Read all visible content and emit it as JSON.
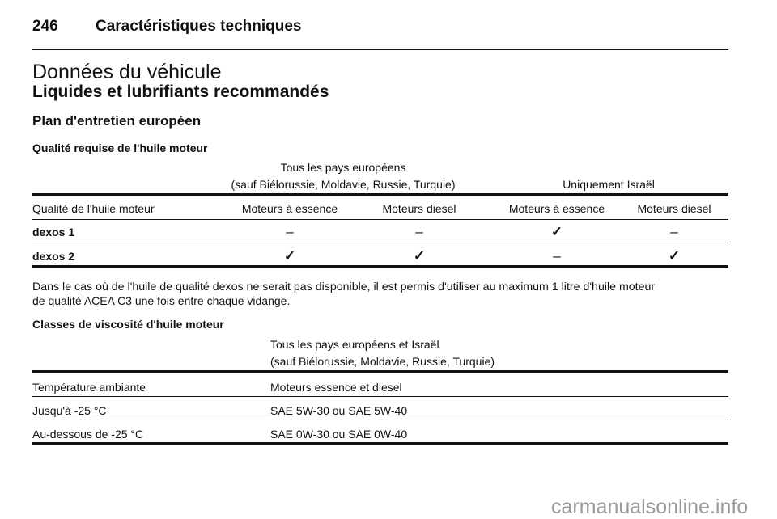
{
  "header": {
    "page_number": "246",
    "chapter": "Caractéristiques techniques"
  },
  "title": "Données du véhicule",
  "subtitle": "Liquides et lubrifiants recommandés",
  "section": "Plan d'entretien européen",
  "table1": {
    "caption": "Qualité requise de l'huile moteur",
    "group1_line1": "Tous les pays européens",
    "group1_line2": "(sauf Biélorussie, Moldavie, Russie, Turquie)",
    "group2": "Uniquement Israël",
    "columns": [
      "Qualité de l'huile moteur",
      "Moteurs à essence",
      "Moteurs diesel",
      "Moteurs à essence",
      "Moteurs diesel"
    ],
    "rows": [
      {
        "label": "dexos 1",
        "cells": [
          "–",
          "–",
          "✓",
          "–"
        ]
      },
      {
        "label": "dexos 2",
        "cells": [
          "✓",
          "✓",
          "–",
          "✓"
        ]
      }
    ]
  },
  "note_line1": "Dans le cas où de l'huile de qualité dexos ne serait pas disponible, il est permis d'utiliser au maximum 1 litre d'huile moteur",
  "note_line2": "de qualité ACEA C3 une fois entre chaque vidange.",
  "table2": {
    "caption": "Classes de viscosité d'huile moteur",
    "group_line1": "Tous les pays européens et Israël",
    "group_line2": "(sauf Biélorussie, Moldavie, Russie, Turquie)",
    "columns": [
      "Température ambiante",
      "Moteurs essence et diesel"
    ],
    "rows": [
      [
        "Jusqu'à -25 °C",
        "SAE 5W-30 ou SAE 5W-40"
      ],
      [
        "Au-dessous de -25 °C",
        "SAE 0W-30 ou SAE 0W-40"
      ]
    ]
  },
  "watermark": "carmanualsonline.info"
}
